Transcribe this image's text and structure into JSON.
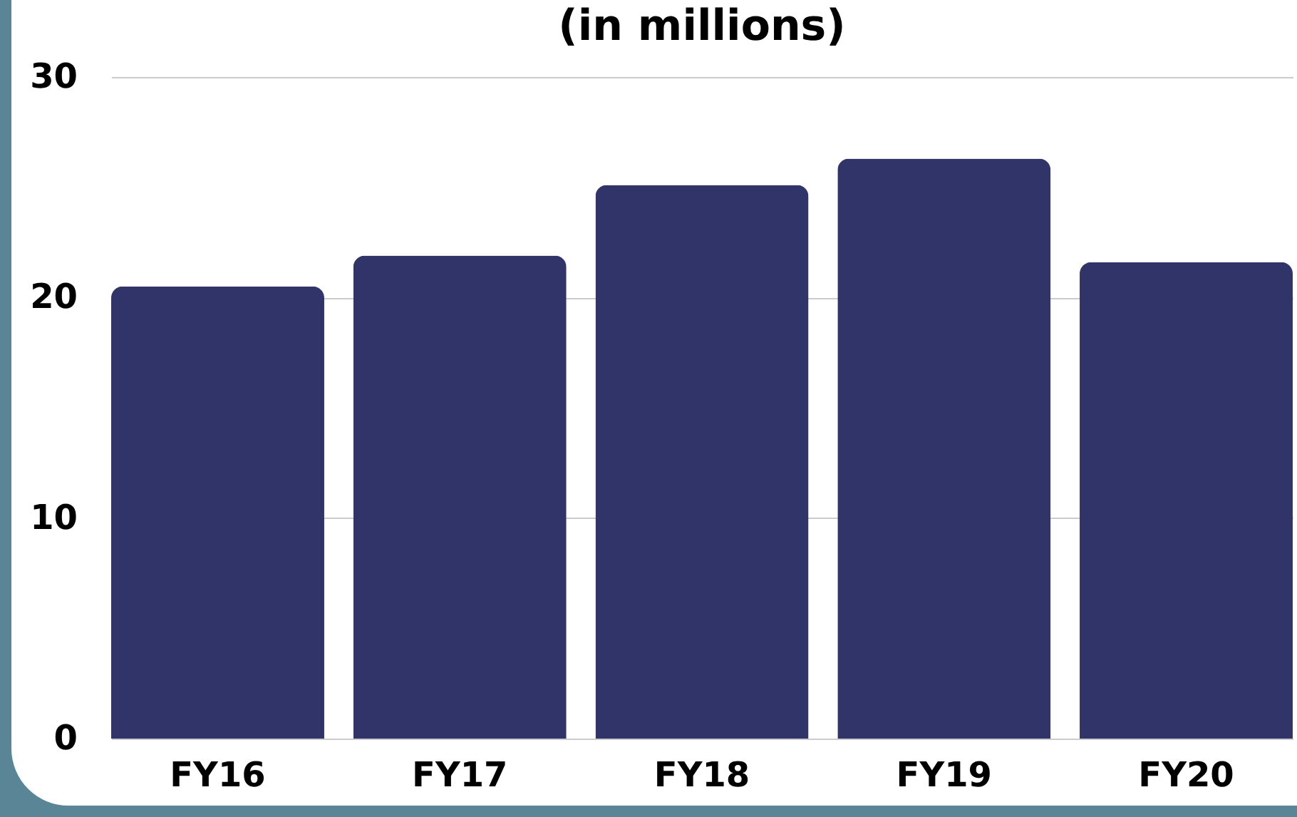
{
  "chart_data": {
    "type": "bar",
    "title": "(in millions)",
    "categories": [
      "FY16",
      "FY17",
      "FY18",
      "FY19",
      "FY20"
    ],
    "values": [
      20.5,
      21.9,
      25.1,
      26.3,
      21.6
    ],
    "color": "#313469",
    "ylim": [
      0,
      30
    ],
    "yticks": [
      0,
      10,
      20,
      30
    ],
    "grid": "y"
  }
}
